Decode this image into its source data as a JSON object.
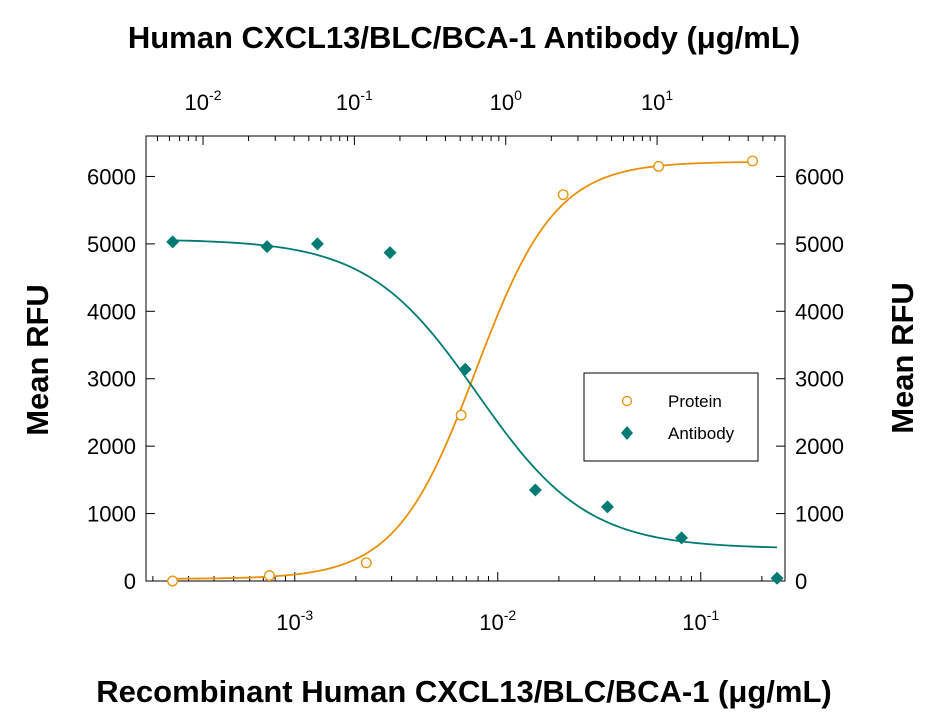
{
  "chart_data": {
    "type": "scatter",
    "title": "Human CXCL13/BLC/BCA-1 Antibody (μg/mL)",
    "xlabel": "Recombinant Human CXCL13/BLC/BCA-1 (μg/mL)",
    "ylabel": "Mean RFU",
    "ylabel_right": "Mean RFU",
    "x_scale": "log",
    "x2_scale": "log",
    "xlim": [
      0.000185,
      0.26
    ],
    "x2lim": [
      0.0042,
      70
    ],
    "ylim": [
      0,
      6600
    ],
    "y_ticks": [
      0,
      1000,
      2000,
      3000,
      4000,
      5000,
      6000
    ],
    "y_tick_labels": [
      "0",
      "1000",
      "2000",
      "3000",
      "4000",
      "5000",
      "6000"
    ],
    "x_ticks": [
      0.001,
      0.01,
      0.1
    ],
    "x_tick_labels": [
      {
        "base": "10",
        "exp": "-3"
      },
      {
        "base": "10",
        "exp": "-2"
      },
      {
        "base": "10",
        "exp": "-1"
      }
    ],
    "x2_ticks": [
      0.01,
      0.1,
      1,
      10
    ],
    "x2_tick_labels": [
      {
        "base": "10",
        "exp": "-2"
      },
      {
        "base": "10",
        "exp": "-1"
      },
      {
        "base": "10",
        "exp": "0"
      },
      {
        "base": "10",
        "exp": "1"
      }
    ],
    "grid": false,
    "legend_position": "center-right",
    "series": [
      {
        "name": "Protein",
        "axis": "bottom",
        "marker": "open-circle",
        "color": "#E8900A",
        "x": [
          0.00025,
          0.00075,
          0.00225,
          0.0066,
          0.021,
          0.062,
          0.18
        ],
        "y": [
          0,
          80,
          270,
          2460,
          5730,
          6150,
          6230
        ],
        "fit": {
          "bottom": 30,
          "top": 6220,
          "ec50": 0.0078,
          "hill": 2.2
        }
      },
      {
        "name": "Antibody",
        "axis": "top",
        "marker": "filled-diamond",
        "color": "#007B73",
        "x": [
          0.0063,
          0.0265,
          0.057,
          0.172,
          0.54,
          1.57,
          4.7,
          14.5,
          62
        ],
        "y": [
          5030,
          4960,
          5000,
          4870,
          3140,
          1350,
          1100,
          640,
          40
        ],
        "fit": {
          "bottom": 480,
          "top": 5070,
          "ec50": 0.65,
          "hill": 1.2
        }
      }
    ]
  }
}
